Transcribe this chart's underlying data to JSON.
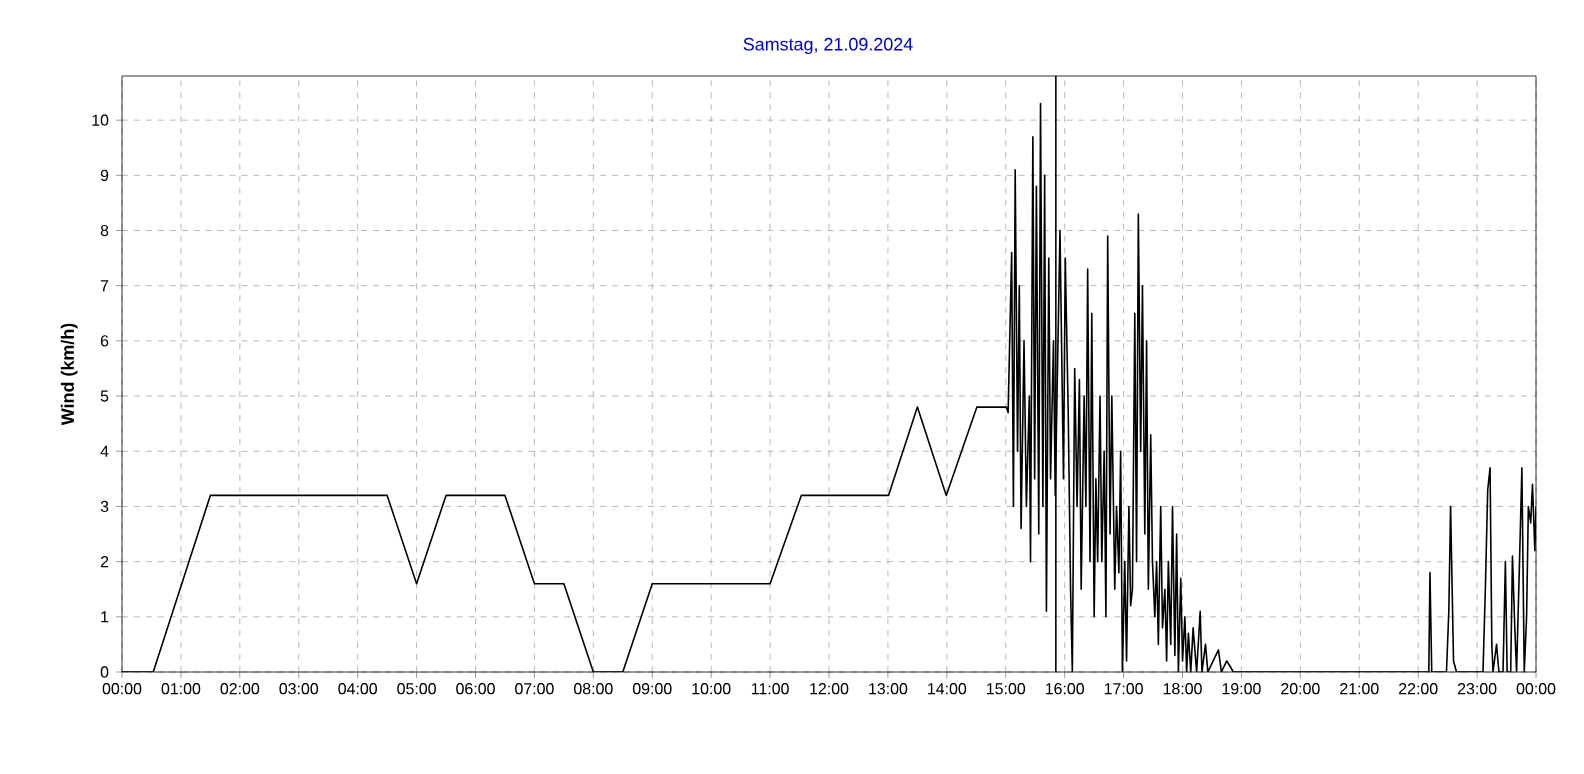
{
  "chart_data": {
    "type": "line",
    "title": "Samstag, 21.09.2024",
    "ylabel": "Wind  (km/h)",
    "color": "#000000",
    "grid": true,
    "line_style": "solid",
    "xlim": [
      0,
      24
    ],
    "ylim": [
      0,
      10.8
    ],
    "xticks": [
      {
        "value": 0,
        "label": "00:00"
      },
      {
        "value": 1,
        "label": "01:00"
      },
      {
        "value": 2,
        "label": "02:00"
      },
      {
        "value": 3,
        "label": "03:00"
      },
      {
        "value": 4,
        "label": "04:00"
      },
      {
        "value": 5,
        "label": "05:00"
      },
      {
        "value": 6,
        "label": "06:00"
      },
      {
        "value": 7,
        "label": "07:00"
      },
      {
        "value": 8,
        "label": "08:00"
      },
      {
        "value": 9,
        "label": "09:00"
      },
      {
        "value": 10,
        "label": "10:00"
      },
      {
        "value": 11,
        "label": "11:00"
      },
      {
        "value": 12,
        "label": "12:00"
      },
      {
        "value": 13,
        "label": "13:00"
      },
      {
        "value": 14,
        "label": "14:00"
      },
      {
        "value": 15,
        "label": "15:00"
      },
      {
        "value": 16,
        "label": "16:00"
      },
      {
        "value": 17,
        "label": "17:00"
      },
      {
        "value": 18,
        "label": "18:00"
      },
      {
        "value": 19,
        "label": "19:00"
      },
      {
        "value": 20,
        "label": "20:00"
      },
      {
        "value": 21,
        "label": "21:00"
      },
      {
        "value": 22,
        "label": "22:00"
      },
      {
        "value": 23,
        "label": "23:00"
      },
      {
        "value": 24,
        "label": "00:00"
      }
    ],
    "yticks": [
      0,
      1,
      2,
      3,
      4,
      5,
      6,
      7,
      8,
      9,
      10
    ],
    "ref_lines": [
      {
        "axis": "x",
        "value": 15.85,
        "color": "#000000"
      }
    ],
    "x": [
      0,
      0.53,
      1.5,
      4.5,
      5.0,
      5.5,
      6.5,
      7.0,
      7.5,
      8.0,
      8.5,
      9.0,
      11.0,
      11.53,
      13.01,
      13.5,
      13.99,
      14.51,
      15.01,
      15.04,
      15.1,
      15.13,
      15.16,
      15.2,
      15.23,
      15.26,
      15.31,
      15.35,
      15.4,
      15.42,
      15.46,
      15.49,
      15.52,
      15.56,
      15.59,
      15.63,
      15.66,
      15.69,
      15.73,
      15.76,
      15.81,
      15.84,
      15.92,
      15.98,
      16.01,
      16.06,
      16.1,
      16.13,
      16.17,
      16.21,
      16.25,
      16.28,
      16.33,
      16.36,
      16.39,
      16.43,
      16.46,
      16.5,
      16.53,
      16.56,
      16.6,
      16.63,
      16.67,
      16.7,
      16.73,
      16.77,
      16.8,
      16.85,
      16.88,
      16.92,
      16.95,
      16.98,
      17.02,
      17.05,
      17.09,
      17.12,
      17.15,
      17.19,
      17.22,
      17.25,
      17.29,
      17.32,
      17.36,
      17.39,
      17.42,
      17.46,
      17.49,
      17.53,
      17.56,
      17.59,
      17.63,
      17.66,
      17.7,
      17.73,
      17.76,
      17.8,
      17.83,
      17.87,
      17.9,
      17.93,
      17.97,
      18.0,
      18.04,
      18.07,
      18.1,
      18.14,
      18.18,
      18.24,
      18.3,
      18.33,
      18.39,
      18.43,
      18.52,
      18.61,
      18.66,
      18.75,
      18.81,
      18.86,
      22.18,
      22.2,
      22.23,
      22.48,
      22.52,
      22.55,
      22.6,
      22.65,
      23.1,
      23.14,
      23.18,
      23.22,
      23.25,
      23.27,
      23.33,
      23.37,
      23.44,
      23.48,
      23.51,
      23.57,
      23.6,
      23.64,
      23.67,
      23.72,
      23.76,
      23.8,
      23.84,
      23.87,
      23.91,
      23.94,
      23.98,
      24.0
    ],
    "values": [
      0,
      0,
      3.2,
      3.2,
      1.6,
      3.2,
      3.2,
      1.6,
      1.6,
      0,
      0,
      1.6,
      1.6,
      3.2,
      3.2,
      4.8,
      3.2,
      4.8,
      4.8,
      4.7,
      7.6,
      3.0,
      9.1,
      4.0,
      7.0,
      2.6,
      6.0,
      3.0,
      5.0,
      2.0,
      9.7,
      3.5,
      8.8,
      2.5,
      10.3,
      3.0,
      9.0,
      1.1,
      7.5,
      3.5,
      6.0,
      3.2,
      8.0,
      3.5,
      7.5,
      4.7,
      1.5,
      0,
      5.5,
      3.0,
      5.3,
      1.5,
      5.0,
      3.0,
      7.3,
      2.0,
      6.5,
      1.0,
      3.5,
      2.0,
      5.0,
      2.0,
      4.0,
      1.0,
      7.9,
      2.5,
      5.0,
      1.5,
      3.0,
      1.8,
      4.0,
      0,
      2.0,
      0.2,
      3.0,
      1.2,
      1.5,
      6.5,
      2.0,
      8.3,
      4.0,
      7.0,
      2.5,
      6.0,
      1.5,
      4.3,
      2.0,
      1.0,
      2.0,
      0.5,
      3.0,
      0.8,
      1.5,
      0.2,
      2.0,
      0.5,
      3.0,
      0.3,
      2.5,
      0,
      1.7,
      0.2,
      1.0,
      0,
      0.7,
      0,
      0.8,
      0,
      1.1,
      0,
      0.5,
      0,
      0.2,
      0.4,
      0,
      0.2,
      0.1,
      0,
      0,
      1.8,
      0,
      0,
      1.1,
      3.0,
      0.2,
      0,
      0,
      1.5,
      3.3,
      3.7,
      0.5,
      0,
      0.5,
      0,
      0,
      2.0,
      0,
      0,
      2.1,
      0.8,
      0,
      2.0,
      3.7,
      0,
      1.0,
      3.0,
      2.7,
      3.4,
      2.2,
      3.0
    ]
  }
}
